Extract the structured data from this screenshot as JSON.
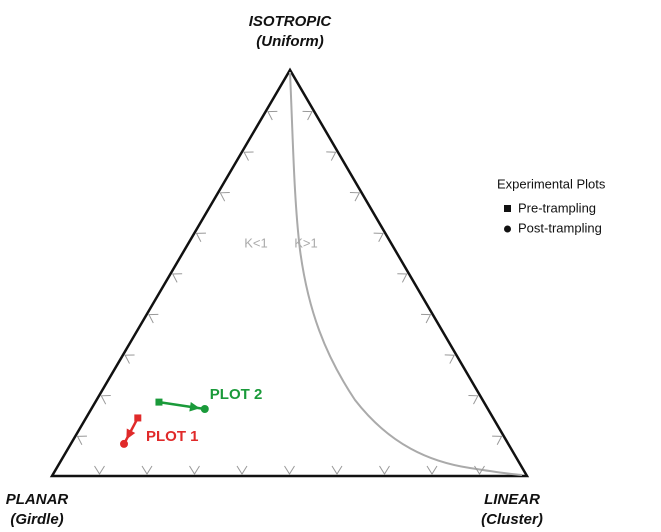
{
  "chart_data": {
    "type": "ternary",
    "corners": [
      {
        "label": "ISOTROPIC",
        "sublabel": "(Uniform)"
      },
      {
        "label": "PLANAR",
        "sublabel": "(Girdle)"
      },
      {
        "label": "LINEAR",
        "sublabel": "(Cluster)"
      }
    ],
    "curve_labels": [
      "K<1",
      "K>1"
    ],
    "legend": {
      "title": "Experimental Plots",
      "items": [
        "Pre-trampling",
        "Post-trampling"
      ]
    },
    "series": [
      {
        "name": "PLOT 1",
        "color": "#e02a2a",
        "values": [
          [
            0.143,
            0.109
          ],
          [
            0.079,
            0.112
          ]
        ]
      },
      {
        "name": "PLOT 2",
        "color": "#1a9a3a",
        "values": [
          [
            0.182,
            0.134
          ],
          [
            0.165,
            0.239
          ]
        ]
      }
    ]
  }
}
